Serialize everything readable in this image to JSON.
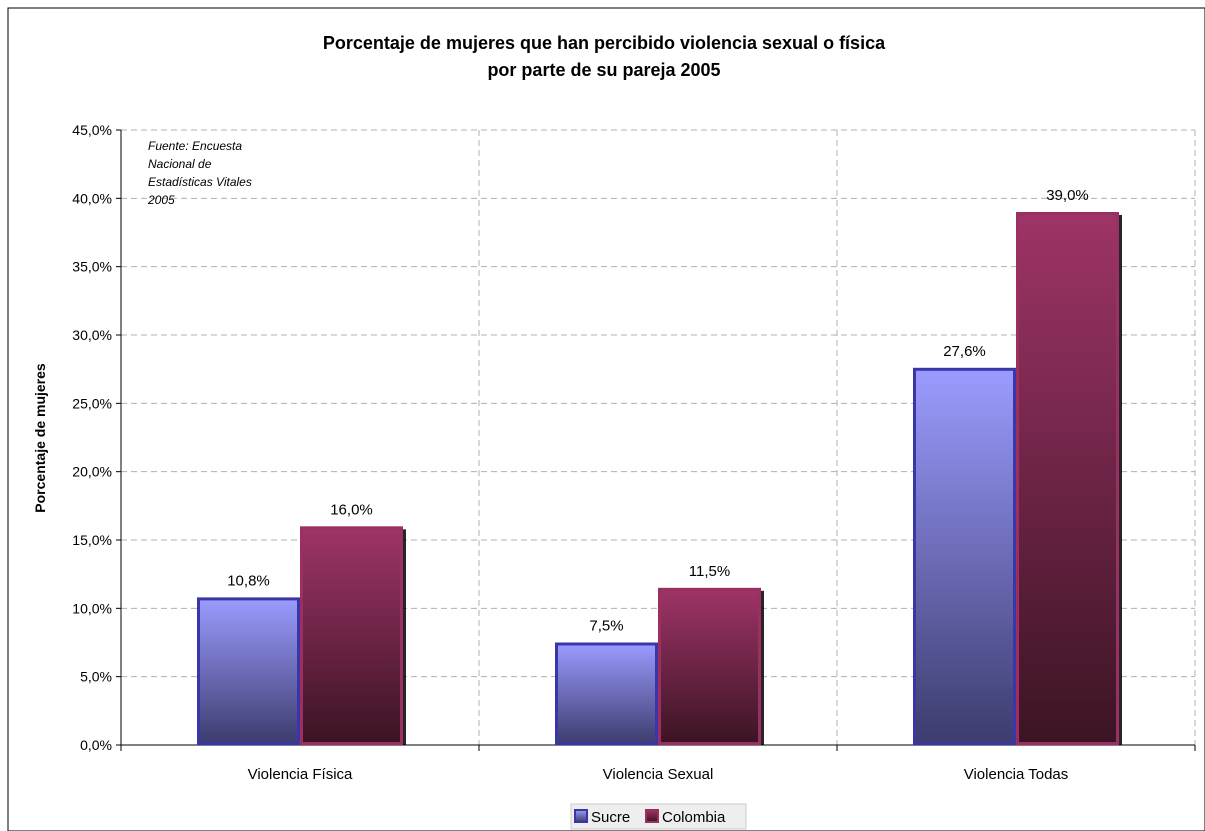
{
  "chart_data": {
    "type": "bar",
    "title_line1": "Porcentaje de mujeres que han percibido violencia sexual o física",
    "title_line2": "por parte de su pareja 2005",
    "xlabel": "",
    "ylabel": "Porcentaje de mujeres",
    "categories": [
      "Violencia Física",
      "Violencia Sexual",
      "Violencia Todas"
    ],
    "series": [
      {
        "name": "Sucre",
        "values": [
          10.8,
          7.5,
          27.6
        ],
        "labels": [
          "10,8%",
          "7,5%",
          "27,6%"
        ],
        "color": "#3a36a8"
      },
      {
        "name": "Colombia",
        "values": [
          16.0,
          11.5,
          39.0
        ],
        "labels": [
          "16,0%",
          "11,5%",
          "39,0%"
        ],
        "color": "#9b2f61"
      }
    ],
    "ylim": [
      0,
      45
    ],
    "yticks": [
      0,
      5,
      10,
      15,
      20,
      25,
      30,
      35,
      40,
      45
    ],
    "ytick_labels": [
      "0,0%",
      "5,0%",
      "10,0%",
      "15,0%",
      "20,0%",
      "25,0%",
      "30,0%",
      "35,0%",
      "40,0%",
      "45,0%"
    ],
    "grid": true,
    "legend_position": "bottom",
    "annotation": [
      "Fuente:  Encuesta",
      "Nacional de",
      "Estadísticas Vitales",
      "2005"
    ]
  }
}
